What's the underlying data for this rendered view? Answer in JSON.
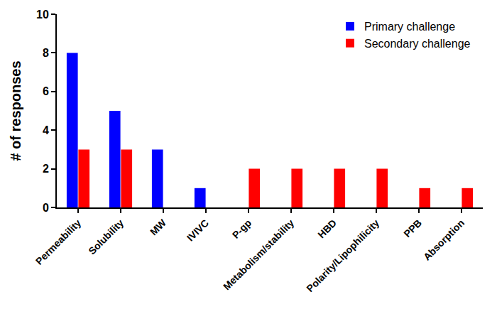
{
  "chart_data": {
    "type": "bar",
    "categories": [
      "Permeability",
      "Solubility",
      "MW",
      "IVIVC",
      "P-gp",
      "Metabolism/stability",
      "HBD",
      "Polarity/Lipophilicity",
      "PPB",
      "Absorption"
    ],
    "series": [
      {
        "name": "Primary challenge",
        "color": "#0000ff",
        "values": [
          8,
          5,
          3,
          1,
          0,
          0,
          0,
          0,
          0,
          0
        ]
      },
      {
        "name": "Secondary challenge",
        "color": "#ff0000",
        "values": [
          3,
          3,
          0,
          0,
          2,
          2,
          2,
          2,
          1,
          1
        ]
      }
    ],
    "ylabel": "# of responses",
    "ylim": [
      0,
      10
    ],
    "yticks": [
      0,
      2,
      4,
      6,
      8,
      10
    ],
    "grid": false,
    "legend": "upper right"
  }
}
